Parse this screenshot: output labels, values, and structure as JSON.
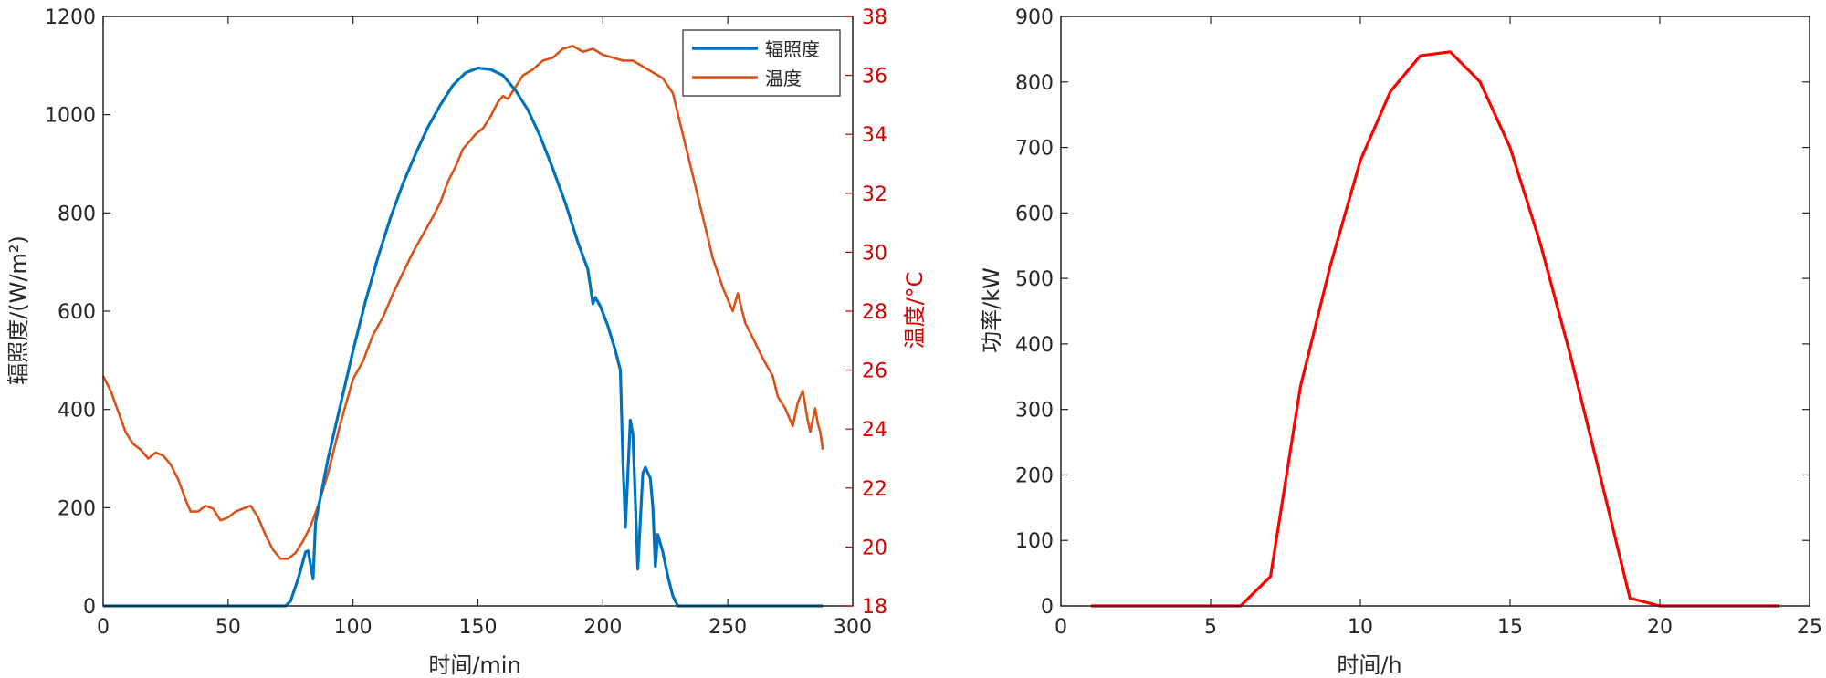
{
  "chart_data": [
    {
      "type": "line",
      "xlabel": "时间/min",
      "ylabel_left": "辐照度/(W/m²)",
      "ylabel_right": "温度/°C",
      "xlim": [
        0,
        300
      ],
      "ylim_left": [
        0,
        1200
      ],
      "ylim_right": [
        18,
        38
      ],
      "xticks": [
        "0",
        "50",
        "100",
        "150",
        "200",
        "250",
        "300"
      ],
      "yticks_left": [
        "0",
        "200",
        "400",
        "600",
        "800",
        "1000",
        "1200"
      ],
      "yticks_right": [
        "18",
        "20",
        "22",
        "24",
        "26",
        "28",
        "30",
        "32",
        "34",
        "36",
        "38"
      ],
      "grid": false,
      "legend": {
        "position": "top-right",
        "entries": [
          "辐照度",
          "温度"
        ]
      },
      "series": [
        {
          "name": "辐照度",
          "axis": "left",
          "color": "#0072BD",
          "points": [
            [
              0,
              0
            ],
            [
              73,
              0
            ],
            [
              75,
              10
            ],
            [
              78,
              55
            ],
            [
              81,
              110
            ],
            [
              82,
              112
            ],
            [
              84,
              55
            ],
            [
              85,
              170
            ],
            [
              90,
              300
            ],
            [
              95,
              410
            ],
            [
              100,
              520
            ],
            [
              105,
              620
            ],
            [
              110,
              710
            ],
            [
              115,
              790
            ],
            [
              120,
              860
            ],
            [
              125,
              920
            ],
            [
              130,
              975
            ],
            [
              135,
              1020
            ],
            [
              140,
              1060
            ],
            [
              145,
              1085
            ],
            [
              150,
              1095
            ],
            [
              155,
              1092
            ],
            [
              160,
              1080
            ],
            [
              165,
              1050
            ],
            [
              170,
              1010
            ],
            [
              175,
              955
            ],
            [
              180,
              890
            ],
            [
              185,
              820
            ],
            [
              190,
              740
            ],
            [
              194,
              685
            ],
            [
              196,
              615
            ],
            [
              197,
              628
            ],
            [
              199,
              610
            ],
            [
              202,
              570
            ],
            [
              205,
              520
            ],
            [
              207,
              480
            ],
            [
              208,
              300
            ],
            [
              209,
              160
            ],
            [
              211,
              378
            ],
            [
              212,
              350
            ],
            [
              214,
              75
            ],
            [
              216,
              270
            ],
            [
              217,
              282
            ],
            [
              219,
              260
            ],
            [
              220,
              200
            ],
            [
              221,
              80
            ],
            [
              222,
              145
            ],
            [
              224,
              110
            ],
            [
              226,
              60
            ],
            [
              228,
              20
            ],
            [
              230,
              0
            ],
            [
              288,
              0
            ]
          ]
        },
        {
          "name": "温度",
          "axis": "right",
          "color": "#D95319",
          "points": [
            [
              0,
              25.8
            ],
            [
              3,
              25.3
            ],
            [
              6,
              24.6
            ],
            [
              9,
              23.9
            ],
            [
              12,
              23.5
            ],
            [
              15,
              23.3
            ],
            [
              18,
              23.0
            ],
            [
              21,
              23.2
            ],
            [
              24,
              23.1
            ],
            [
              27,
              22.8
            ],
            [
              30,
              22.3
            ],
            [
              33,
              21.6
            ],
            [
              35,
              21.2
            ],
            [
              38,
              21.2
            ],
            [
              41,
              21.4
            ],
            [
              44,
              21.3
            ],
            [
              47,
              20.9
            ],
            [
              50,
              21.0
            ],
            [
              53,
              21.2
            ],
            [
              56,
              21.3
            ],
            [
              59,
              21.4
            ],
            [
              62,
              21.0
            ],
            [
              65,
              20.4
            ],
            [
              68,
              19.9
            ],
            [
              71,
              19.6
            ],
            [
              74,
              19.6
            ],
            [
              77,
              19.8
            ],
            [
              80,
              20.2
            ],
            [
              83,
              20.7
            ],
            [
              86,
              21.4
            ],
            [
              90,
              22.5
            ],
            [
              95,
              24.2
            ],
            [
              100,
              25.7
            ],
            [
              104,
              26.3
            ],
            [
              108,
              27.2
            ],
            [
              112,
              27.8
            ],
            [
              116,
              28.6
            ],
            [
              120,
              29.3
            ],
            [
              124,
              30.0
            ],
            [
              128,
              30.6
            ],
            [
              132,
              31.2
            ],
            [
              135,
              31.7
            ],
            [
              138,
              32.4
            ],
            [
              141,
              32.9
            ],
            [
              144,
              33.5
            ],
            [
              147,
              33.8
            ],
            [
              149,
              34.0
            ],
            [
              152,
              34.2
            ],
            [
              155,
              34.6
            ],
            [
              158,
              35.1
            ],
            [
              160,
              35.3
            ],
            [
              162,
              35.2
            ],
            [
              165,
              35.6
            ],
            [
              168,
              36.0
            ],
            [
              172,
              36.2
            ],
            [
              176,
              36.5
            ],
            [
              180,
              36.6
            ],
            [
              184,
              36.9
            ],
            [
              188,
              37.0
            ],
            [
              192,
              36.8
            ],
            [
              196,
              36.9
            ],
            [
              200,
              36.7
            ],
            [
              204,
              36.6
            ],
            [
              208,
              36.5
            ],
            [
              212,
              36.5
            ],
            [
              216,
              36.3
            ],
            [
              220,
              36.1
            ],
            [
              224,
              35.9
            ],
            [
              228,
              35.4
            ],
            [
              232,
              34.0
            ],
            [
              236,
              32.6
            ],
            [
              240,
              31.2
            ],
            [
              244,
              29.8
            ],
            [
              248,
              28.8
            ],
            [
              252,
              28.0
            ],
            [
              254,
              28.6
            ],
            [
              257,
              27.6
            ],
            [
              260,
              27.1
            ],
            [
              264,
              26.4
            ],
            [
              268,
              25.8
            ],
            [
              270,
              25.1
            ],
            [
              273,
              24.7
            ],
            [
              276,
              24.1
            ],
            [
              278,
              24.9
            ],
            [
              280,
              25.3
            ],
            [
              282,
              24.3
            ],
            [
              283,
              23.9
            ],
            [
              285,
              24.7
            ],
            [
              286,
              24.2
            ],
            [
              287,
              23.9
            ],
            [
              288,
              23.3
            ]
          ]
        }
      ]
    },
    {
      "type": "line",
      "xlabel": "时间/h",
      "ylabel": "功率/kW",
      "xlim": [
        0,
        25
      ],
      "ylim": [
        0,
        900
      ],
      "xticks": [
        "0",
        "5",
        "10",
        "15",
        "20",
        "25"
      ],
      "yticks": [
        "0",
        "100",
        "200",
        "300",
        "400",
        "500",
        "600",
        "700",
        "800",
        "900"
      ],
      "grid": false,
      "series": [
        {
          "color": "#FF0000",
          "x": [
            1,
            2,
            3,
            4,
            5,
            6,
            7,
            8,
            9,
            10,
            11,
            12,
            13,
            14,
            15,
            16,
            17,
            18,
            19,
            20,
            21,
            22,
            23,
            24
          ],
          "y": [
            0,
            0,
            0,
            0,
            0,
            0,
            45,
            335,
            520,
            680,
            785,
            840,
            846,
            800,
            700,
            555,
            385,
            200,
            12,
            0,
            0,
            0,
            0,
            0
          ]
        }
      ]
    }
  ]
}
